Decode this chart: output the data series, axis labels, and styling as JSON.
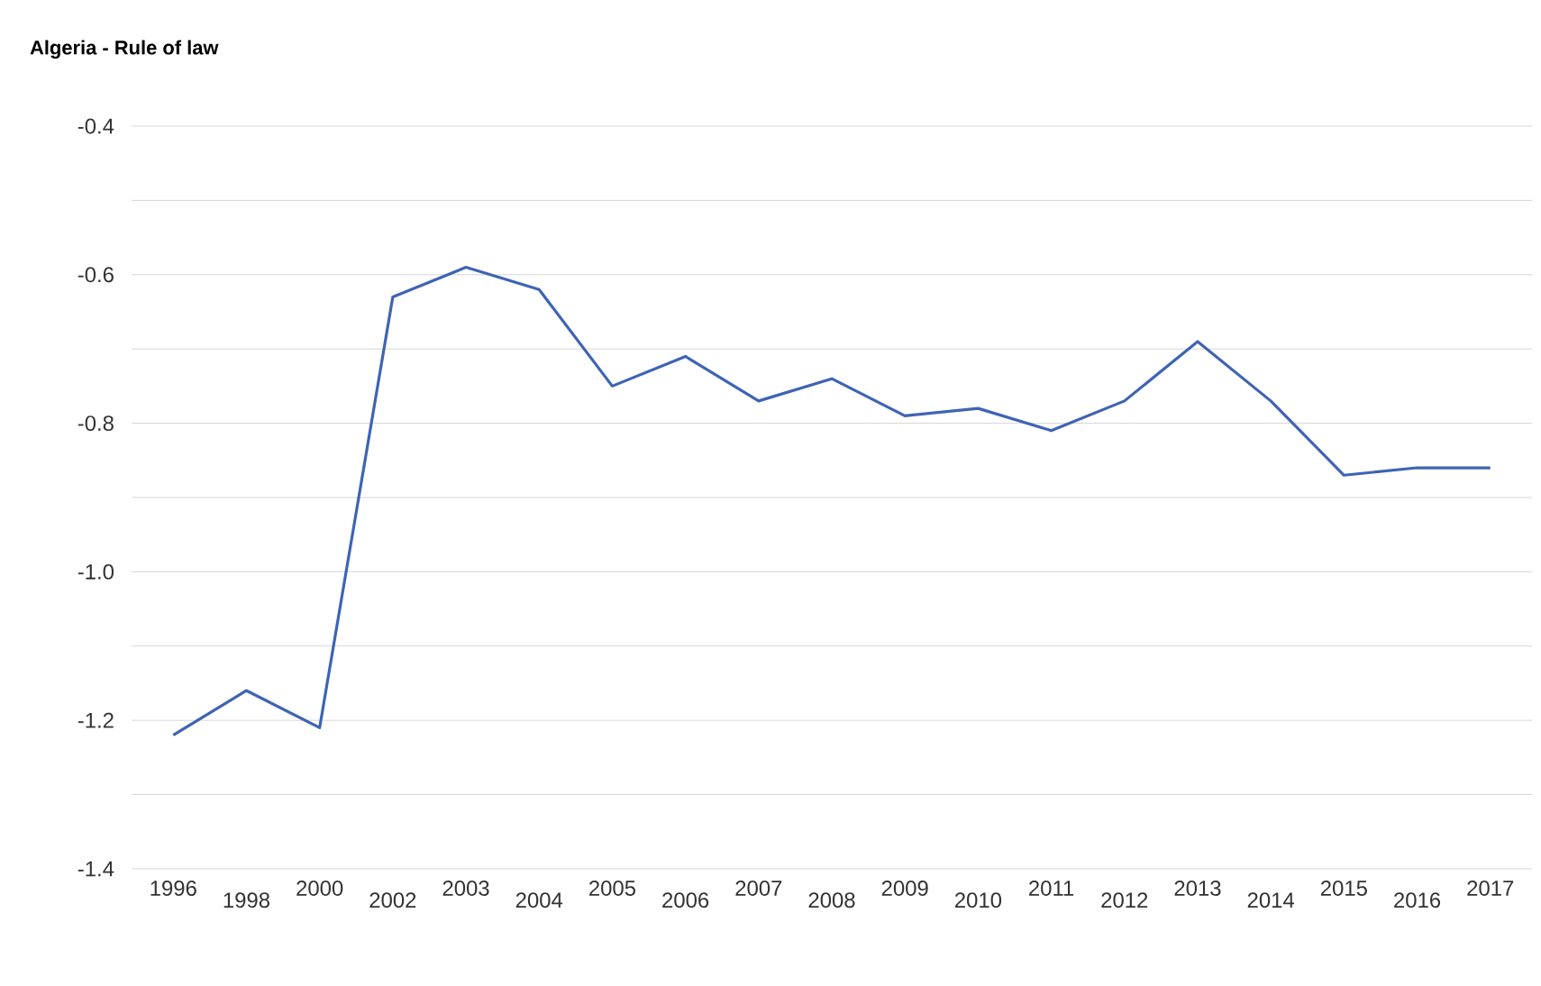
{
  "chart_data": {
    "type": "line",
    "title": "Algeria - Rule of law",
    "categories": [
      "1996",
      "1998",
      "2000",
      "2002",
      "2003",
      "2004",
      "2005",
      "2006",
      "2007",
      "2008",
      "2009",
      "2010",
      "2011",
      "2012",
      "2013",
      "2014",
      "2015",
      "2016",
      "2017"
    ],
    "series": [
      {
        "color": "#3e64b4",
        "values": [
          -1.22,
          -1.16,
          -1.21,
          -0.63,
          -0.59,
          -0.62,
          -0.75,
          -0.71,
          -0.77,
          -0.74,
          -0.79,
          -0.78,
          -0.81,
          -0.77,
          -0.69,
          -0.77,
          -0.87,
          -0.86,
          -0.86
        ]
      }
    ],
    "ylim": [
      -1.4,
      -0.4
    ],
    "yticks": [
      -1.4,
      {
        "value": -1.3,
        "label": null
      },
      -1.2,
      {
        "value": -1.1,
        "label": null
      },
      {
        "value": -1.0,
        "label": "-1.0"
      },
      {
        "value": -0.9,
        "label": null
      },
      -0.8,
      {
        "value": -0.7,
        "label": null
      },
      -0.6,
      {
        "value": -0.5,
        "label": null
      },
      -0.4
    ],
    "grid": "y",
    "marker": "none",
    "line_style": "solid"
  }
}
